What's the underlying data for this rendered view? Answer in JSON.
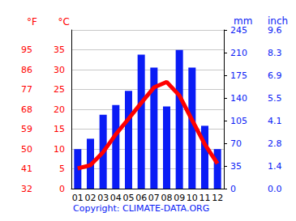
{
  "chart_data": {
    "type": "bar",
    "categories": [
      "01",
      "02",
      "03",
      "04",
      "05",
      "06",
      "07",
      "08",
      "09",
      "10",
      "11",
      "12"
    ],
    "series": [
      {
        "type": "bar",
        "color": "#0a1cf5",
        "axis": "y2",
        "values": [
          61,
          77,
          114,
          129,
          151,
          207,
          187,
          127,
          214,
          187,
          97,
          61
        ]
      },
      {
        "type": "line",
        "color": "#ff0000",
        "values": [
          5.1,
          5.9,
          9.2,
          13.7,
          17.6,
          21.6,
          25.5,
          26.9,
          23.5,
          17.3,
          11.2,
          6.3
        ]
      }
    ],
    "ylabel": "°C",
    "ylim": [
      0,
      40
    ],
    "yticks": [
      0,
      5,
      10,
      15,
      20,
      25,
      30,
      35
    ],
    "y3label": "°F",
    "y3lim": [
      32,
      104
    ],
    "y3ticks": [
      32,
      41,
      50,
      59,
      68,
      77,
      86,
      95
    ],
    "y2label": "mm",
    "y2lim": [
      0,
      245
    ],
    "y2ticks": [
      0,
      35,
      70,
      105,
      140,
      175,
      210,
      245
    ],
    "y4label": "inch",
    "y4lim": [
      0,
      9.646
    ],
    "y4ticks": [
      {
        "value": 0,
        "label": "0.0"
      },
      {
        "value": 1.378,
        "label": "1.4"
      },
      {
        "value": 2.756,
        "label": "2.8"
      },
      {
        "value": 4.134,
        "label": "4.1"
      },
      {
        "value": 5.512,
        "label": "5.5"
      },
      {
        "value": 6.89,
        "label": "6.9"
      },
      {
        "value": 8.268,
        "label": "8.3"
      },
      {
        "value": 9.646,
        "label": "9.6"
      }
    ],
    "grid": true,
    "annotation": "Copyright: CLIMATE-DATA.ORG"
  }
}
